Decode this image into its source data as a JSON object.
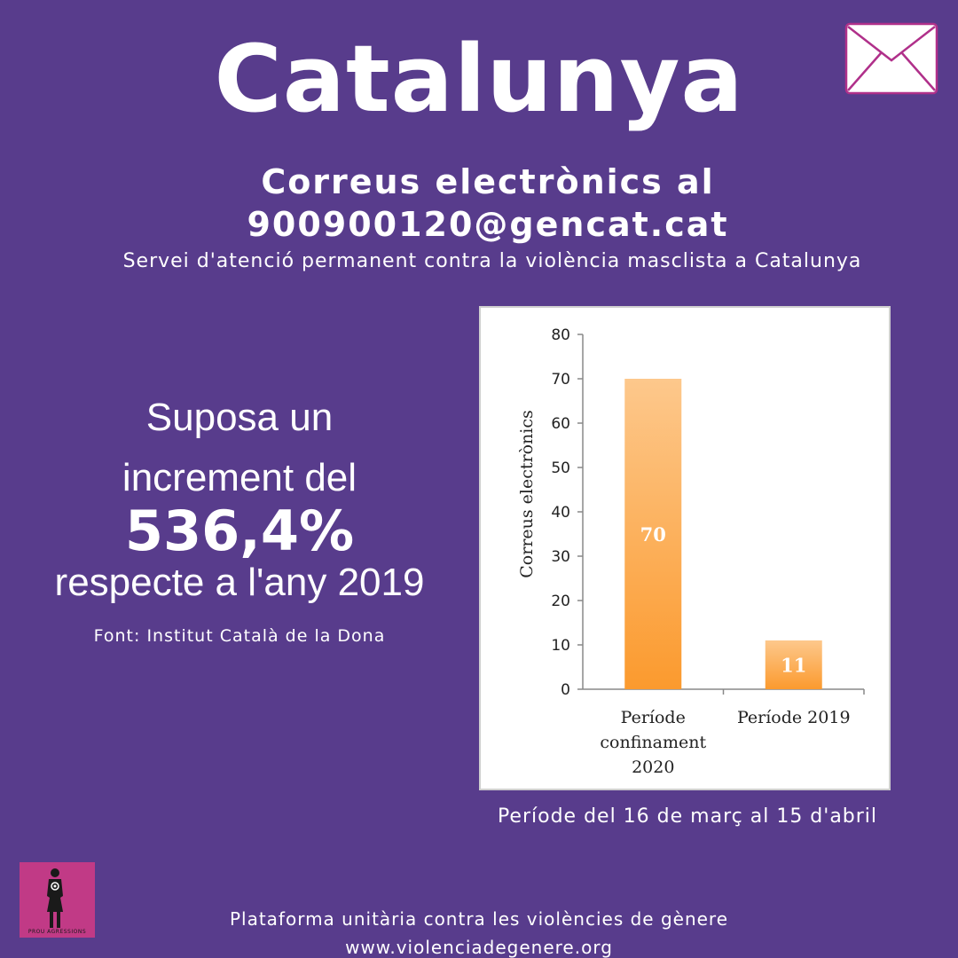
{
  "header": {
    "title": "Catalunya",
    "subtitle_line1": "Correus electrònics al",
    "subtitle_line2": "900900120@gencat.cat",
    "service": "Servei d'atenció permanent contra la violència masclista a Catalunya"
  },
  "claim": {
    "line1": "Suposa un",
    "line2": "increment del",
    "percent": "536,4%",
    "line4": "respecte a l'any 2019",
    "source": "Font: Institut Català de la Dona"
  },
  "chart_data": {
    "type": "bar",
    "categories": [
      "Període confinament 2020",
      "Període 2019"
    ],
    "category_lines": [
      [
        "Període",
        "confinament",
        "2020"
      ],
      [
        "Període 2019"
      ]
    ],
    "values": [
      70,
      11
    ],
    "data_labels": [
      "70",
      "11"
    ],
    "ylabel": "Correus electrònics",
    "ylim": [
      0,
      80
    ],
    "yticks": [
      0,
      10,
      20,
      30,
      40,
      50,
      60,
      70,
      80
    ],
    "bar_color": "#fb9a2e",
    "bar_color_light": "#fdc88c"
  },
  "period_note": "Període del 16 de març al 15 d'abril",
  "logo": {
    "text": "PROU AGRESSIONS",
    "icon": "woman-figure-icon",
    "color": "#c13a86"
  },
  "footer": {
    "line1": "Plataforma unitària contra les violències de gènere",
    "line2": "www.violenciadegenere.org"
  },
  "colors": {
    "background": "#583c8c",
    "text": "#ffffff",
    "envelope_border": "#b0308a"
  },
  "icons": {
    "envelope": "envelope-icon"
  }
}
